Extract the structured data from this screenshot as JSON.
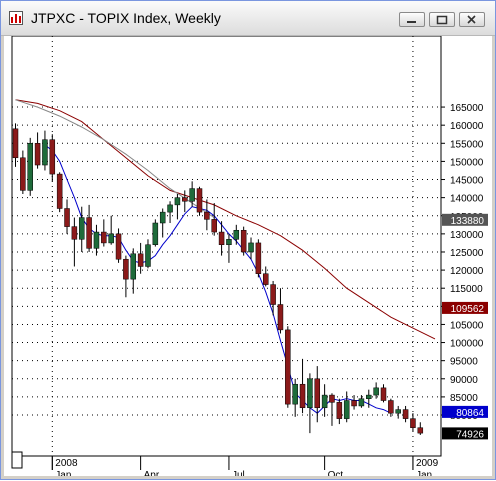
{
  "window": {
    "title": "JTPXC - TOPIX Index, Weekly"
  },
  "chart_data": {
    "type": "candlestick",
    "title": "",
    "grid": true,
    "y_ticks": [
      80000,
      85000,
      90000,
      95000,
      100000,
      105000,
      110000,
      115000,
      120000,
      125000,
      130000,
      135000,
      140000,
      145000,
      150000,
      155000,
      160000,
      165000
    ],
    "y_tick_labels": [
      "80000",
      "85000",
      "90000",
      "95000",
      "100000",
      "105000",
      "110000",
      "115000",
      "120000",
      "125000",
      "130000",
      "135000",
      "140000",
      "145000",
      "150000",
      "155000",
      "160000",
      "165000"
    ],
    "x_labels": [
      {
        "week": 5,
        "text": "2008",
        "row": 1
      },
      {
        "week": 5,
        "text": "Jan",
        "row": 2
      },
      {
        "week": 17,
        "text": "Apr",
        "row": 2
      },
      {
        "week": 29,
        "text": "Jul",
        "row": 2
      },
      {
        "week": 42,
        "text": "Oct",
        "row": 2
      },
      {
        "week": 54,
        "text": "2009",
        "row": 1
      },
      {
        "week": 54,
        "text": "Jan",
        "row": 2
      }
    ],
    "year_dividers_week": [
      5,
      54
    ],
    "candles": [
      [
        159000,
        160500,
        148500,
        151000
      ],
      [
        151000,
        153000,
        141000,
        142000
      ],
      [
        142000,
        156500,
        140500,
        155000
      ],
      [
        155000,
        158000,
        148000,
        149000
      ],
      [
        149000,
        158500,
        147500,
        156000
      ],
      [
        156000,
        157500,
        144500,
        146500
      ],
      [
        146500,
        147000,
        136000,
        137000
      ],
      [
        137000,
        139500,
        130000,
        132000
      ],
      [
        132000,
        134500,
        121000,
        128500
      ],
      [
        128500,
        137500,
        125000,
        134500
      ],
      [
        134500,
        138000,
        125000,
        126000
      ],
      [
        126000,
        132500,
        124000,
        130500
      ],
      [
        130500,
        134000,
        126500,
        127500
      ],
      [
        127500,
        135000,
        127000,
        130000
      ],
      [
        130000,
        131500,
        122000,
        123000
      ],
      [
        123000,
        124000,
        112500,
        117500
      ],
      [
        117500,
        126000,
        113500,
        124500
      ],
      [
        124500,
        127500,
        119000,
        121000
      ],
      [
        121000,
        128500,
        120500,
        127000
      ],
      [
        127000,
        134000,
        126500,
        133000
      ],
      [
        133000,
        137000,
        129000,
        136000
      ],
      [
        136000,
        139000,
        133000,
        138000
      ],
      [
        138000,
        141000,
        134000,
        140000
      ],
      [
        140000,
        142000,
        136000,
        139000
      ],
      [
        139000,
        144500,
        137500,
        142500
      ],
      [
        142500,
        143000,
        135000,
        136000
      ],
      [
        136000,
        139500,
        131000,
        134000
      ],
      [
        134000,
        138500,
        129500,
        130500
      ],
      [
        130500,
        133500,
        124000,
        127000
      ],
      [
        127000,
        130000,
        122000,
        128500
      ],
      [
        128500,
        132500,
        127000,
        131000
      ],
      [
        131000,
        132000,
        124000,
        125000
      ],
      [
        125000,
        129000,
        123000,
        127500
      ],
      [
        127500,
        128500,
        118000,
        119000
      ],
      [
        119000,
        121000,
        115500,
        116000
      ],
      [
        116000,
        117000,
        107500,
        110500
      ],
      [
        110500,
        115000,
        102500,
        103500
      ],
      [
        103500,
        104500,
        82000,
        83000
      ],
      [
        83000,
        90000,
        79500,
        88500
      ],
      [
        88500,
        95500,
        80500,
        82000
      ],
      [
        82000,
        91500,
        75000,
        90000
      ],
      [
        90000,
        93500,
        78000,
        82000
      ],
      [
        82000,
        88500,
        79500,
        85500
      ],
      [
        85500,
        86000,
        77000,
        83500
      ],
      [
        83500,
        84500,
        77500,
        79000
      ],
      [
        79000,
        86500,
        78000,
        84000
      ],
      [
        84000,
        85500,
        81500,
        82500
      ],
      [
        82500,
        85500,
        82000,
        84500
      ],
      [
        84500,
        87000,
        82000,
        85500
      ],
      [
        85500,
        89000,
        84500,
        87500
      ],
      [
        87500,
        88500,
        83500,
        84000
      ],
      [
        84000,
        84500,
        79500,
        80500
      ],
      [
        80500,
        82500,
        79000,
        81500
      ],
      [
        81500,
        82500,
        78000,
        79000
      ],
      [
        79000,
        80500,
        75500,
        76500
      ],
      [
        76500,
        78000,
        74500,
        75000
      ]
    ],
    "series": [
      {
        "kind": "ma",
        "period": 5,
        "color": "#0000cc",
        "start_week": 4,
        "values": [
          154500,
          153000,
          150000,
          145000,
          140000,
          134500,
          131500,
          130000,
          129500,
          129500,
          129000,
          125500,
          122500,
          122000,
          122500,
          124000,
          127000,
          129500,
          132500,
          135500,
          137500,
          137000,
          136500,
          135000,
          132500,
          130000,
          128000,
          125500,
          123000,
          119000,
          114000,
          108000,
          100500,
          93500,
          86000,
          84000,
          82000,
          80500,
          82500,
          84500,
          84000,
          84500,
          84000,
          84000,
          83000,
          82000,
          81500,
          80500
        ]
      },
      {
        "kind": "ma",
        "period": 26,
        "color": "#8b0000",
        "start_week": 0,
        "values": [
          167000,
          166000,
          164000,
          161000,
          156000,
          151000,
          146000,
          142000,
          140000,
          138000,
          135000,
          132500,
          129500,
          125500,
          120500,
          115000,
          111000,
          107000,
          104000,
          101000
        ]
      },
      {
        "kind": "ma",
        "period": 52,
        "color": "#888888",
        "start_week": 0,
        "values": [
          167000,
          165000,
          162500,
          159500,
          156000,
          152000,
          147500,
          142500,
          138500,
          134500
        ]
      }
    ],
    "value_tags": [
      {
        "value": 133880,
        "text": "133880",
        "bg": "#555555",
        "fg": "#ffffff"
      },
      {
        "value": 109562,
        "text": "109562",
        "bg": "#8b0000",
        "fg": "#ffffff"
      },
      {
        "value": 80864,
        "text": "80864",
        "bg": "#0000cc",
        "fg": "#ffffff"
      },
      {
        "value": 74926,
        "text": "74926",
        "bg": "#000000",
        "fg": "#ffffff"
      }
    ],
    "colors": {
      "up": "#1e6b3a",
      "down": "#8b1a1a",
      "wick": "#000000",
      "grid": "#000000"
    }
  }
}
